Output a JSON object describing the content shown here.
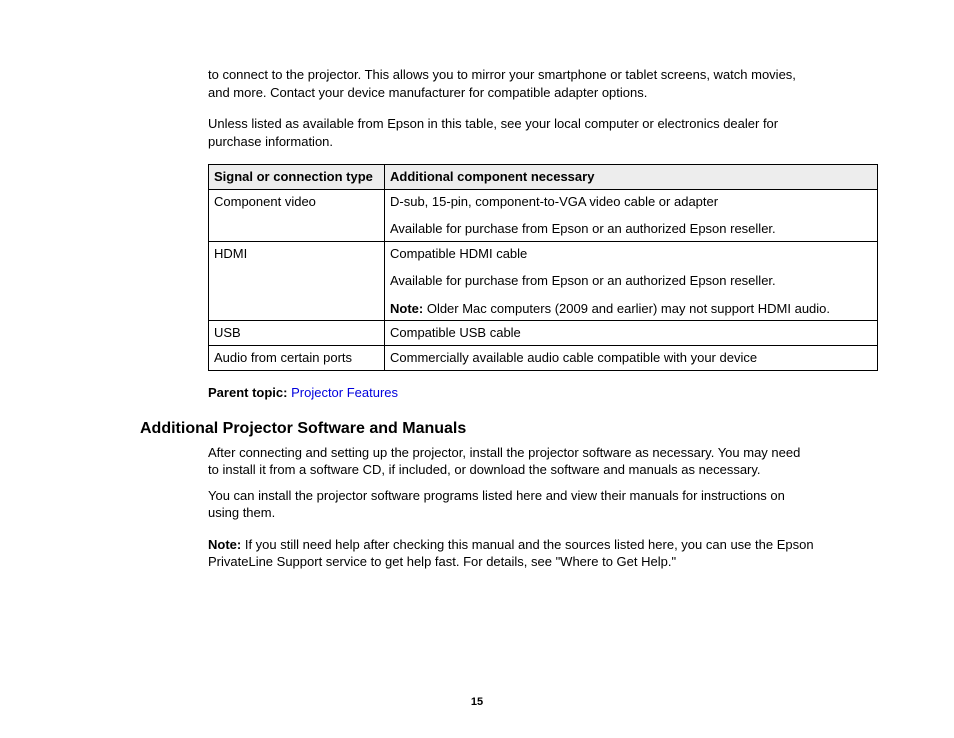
{
  "intro": {
    "p1": "to connect to the projector. This allows you to mirror your smartphone or tablet screens, watch movies, and more. Contact your device manufacturer for compatible adapter options.",
    "p2": "Unless listed as available from Epson in this table, see your local computer or electronics dealer for purchase information."
  },
  "table": {
    "columns": [
      "Signal or connection type",
      "Additional component necessary"
    ],
    "rows": [
      {
        "signal": "Component video",
        "detail_p1": "D-sub, 15-pin, component-to-VGA video cable or adapter",
        "detail_p2": "Available for purchase from Epson or an authorized Epson reseller."
      },
      {
        "signal": "HDMI",
        "detail_p1": "Compatible HDMI cable",
        "detail_p2": "Available for purchase from Epson or an authorized Epson reseller.",
        "note_label": "Note:",
        "note_text": " Older Mac computers (2009 and earlier) may not support HDMI audio."
      },
      {
        "signal": "USB",
        "detail_p1": "Compatible USB cable"
      },
      {
        "signal": "Audio from certain ports",
        "detail_p1": "Commercially available audio cable compatible with your device"
      }
    ]
  },
  "parent_topic": {
    "label": "Parent topic:",
    "link_text": "Projector Features"
  },
  "section": {
    "heading": "Additional Projector Software and Manuals",
    "p1": "After connecting and setting up the projector, install the projector software as necessary. You may need to install it from a software CD, if included, or download the software and manuals as necessary.",
    "p2": "You can install the projector software programs listed here and view their manuals for instructions on using them.",
    "note_label": "Note:",
    "note_text": " If you still need help after checking this manual and the sources listed here, you can use the Epson PrivateLine Support service to get help fast. For details, see \"Where to Get Help.\""
  },
  "page_number": "15"
}
